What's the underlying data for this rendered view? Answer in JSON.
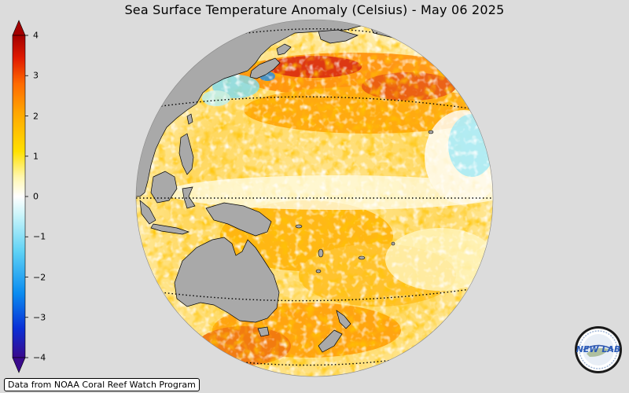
{
  "title": "Sea Surface Temperature Anomaly (Celsius) - May 06 2025",
  "colorbar": {
    "min": -4,
    "max": 4,
    "tick_labels": [
      "4",
      "3",
      "2",
      "1",
      "0",
      "−1",
      "−2",
      "−3",
      "−4"
    ],
    "tick_values": [
      4,
      3,
      2,
      1,
      0,
      -1,
      -2,
      -3,
      -4
    ],
    "colors": [
      "#3a0a8c",
      "#0a2fd6",
      "#0a8cf0",
      "#5fd2f5",
      "#c8f4fa",
      "#ffffff",
      "#fff7b0",
      "#ffe000",
      "#ffa600",
      "#ff6a00",
      "#e01a00",
      "#a30000"
    ]
  },
  "map": {
    "projection": "orthographic",
    "center": "tropical western Pacific",
    "land_color": "#a9a9a9",
    "ocean_anomaly": "mostly positive",
    "dotted_parallels": true
  },
  "credit": "Data from NOAA Coral Reef Watch Program",
  "logo": {
    "text": "NEW LAB",
    "icon": "nex-lab-logo-icon"
  }
}
